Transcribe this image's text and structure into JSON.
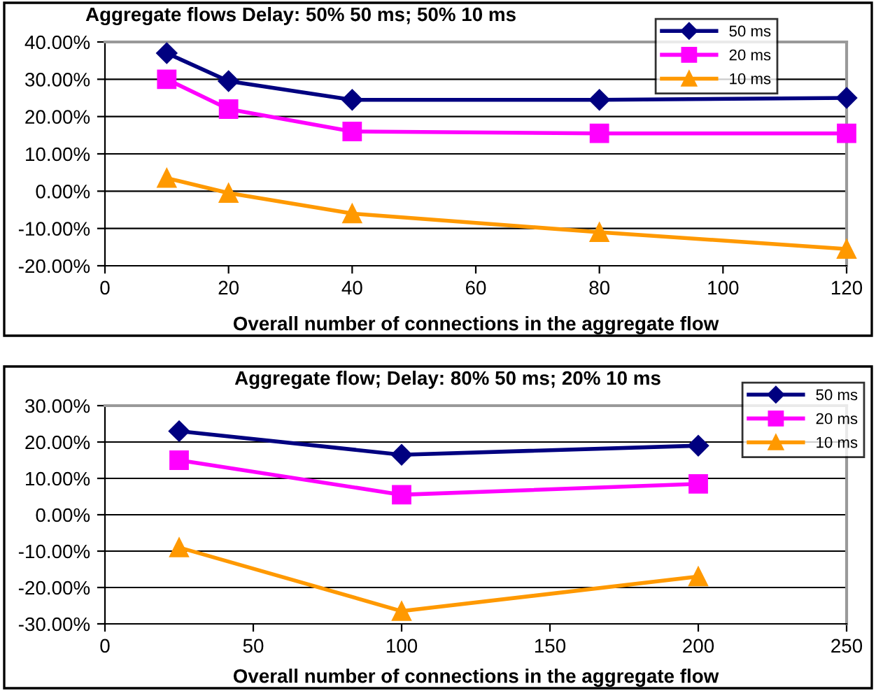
{
  "chart_data": [
    {
      "type": "line",
      "title": "Aggregate flows Delay: 50% 50 ms; 50% 10 ms",
      "xlabel": "Overall number of connections in the aggregate flow",
      "x": [
        10,
        20,
        40,
        80,
        120
      ],
      "series": [
        {
          "name": "50 ms",
          "color": "#000080",
          "marker": "diamond",
          "values": [
            37,
            29.5,
            24.5,
            24.5,
            25
          ]
        },
        {
          "name": "20 ms",
          "color": "#ff00ff",
          "marker": "square",
          "values": [
            30,
            22,
            16,
            15.5,
            15.5
          ]
        },
        {
          "name": "10 ms",
          "color": "#ff9900",
          "marker": "triangle",
          "values": [
            3.5,
            -0.5,
            -6,
            -11,
            -15.5
          ]
        }
      ],
      "xlim": [
        0,
        120
      ],
      "xticks": [
        0,
        20,
        40,
        60,
        80,
        100,
        120
      ],
      "ylim": [
        -20,
        40
      ],
      "yticks": [
        {
          "value": -20,
          "label": "-20.00%"
        },
        {
          "value": -10,
          "label": "-10.00%"
        },
        {
          "value": 0,
          "label": "0.00%"
        },
        {
          "value": 10,
          "label": "10.00%"
        },
        {
          "value": 20,
          "label": "20.00%"
        },
        {
          "value": 30,
          "label": "30.00%"
        },
        {
          "value": 40,
          "label": "40.00%"
        }
      ],
      "grid": "y",
      "legend": "top right",
      "line_style": "solid"
    },
    {
      "type": "line",
      "title": "Aggregate flow; Delay: 80% 50 ms; 20% 10 ms",
      "xlabel": "Overall number of connections in the aggregate flow",
      "x": [
        25,
        100,
        200
      ],
      "series": [
        {
          "name": "50 ms",
          "color": "#000080",
          "marker": "diamond",
          "values": [
            23,
            16.5,
            19
          ]
        },
        {
          "name": "20 ms",
          "color": "#ff00ff",
          "marker": "square",
          "values": [
            15,
            5.5,
            8.5
          ]
        },
        {
          "name": "10 ms",
          "color": "#ff9900",
          "marker": "triangle",
          "values": [
            -9,
            -26.5,
            -17
          ]
        }
      ],
      "xlim": [
        0,
        250
      ],
      "xticks": [
        0,
        50,
        100,
        150,
        200,
        250
      ],
      "ylim": [
        -30,
        30
      ],
      "yticks": [
        {
          "value": -30,
          "label": "-30.00%"
        },
        {
          "value": -20,
          "label": "-20.00%"
        },
        {
          "value": -10,
          "label": "-10.00%"
        },
        {
          "value": 0,
          "label": "0.00%"
        },
        {
          "value": 10,
          "label": "10.00%"
        },
        {
          "value": 20,
          "label": "20.00%"
        },
        {
          "value": 30,
          "label": "30.00%"
        }
      ],
      "grid": "y",
      "legend": "top right",
      "line_style": "solid"
    }
  ]
}
